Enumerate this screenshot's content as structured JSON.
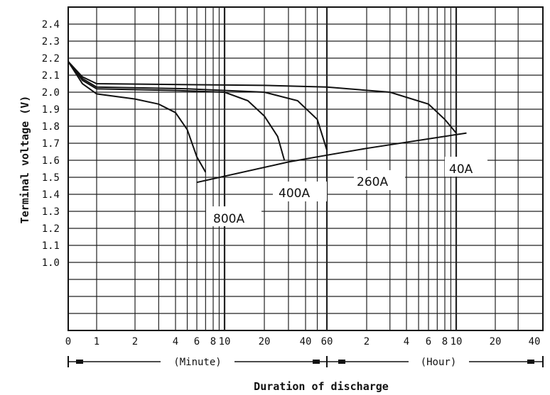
{
  "chart_data": {
    "type": "line",
    "title": "",
    "ylabel": "Terminal voltage (V)",
    "xlabel": "Duration of discharge",
    "x_segment_labels": [
      "(Minute)",
      "(Hour)"
    ],
    "y_ticks": [
      "2.4",
      "2.3",
      "2.2",
      "2.1",
      "2.0",
      "1.9",
      "1.8",
      "1.7",
      "1.6",
      "1.5",
      "1.4",
      "1.3",
      "1.2",
      "1.1",
      "1.0"
    ],
    "x_ticks": [
      "0",
      "1",
      "2",
      "4",
      "6",
      "8",
      "10",
      "20",
      "40",
      "60",
      "2",
      "4",
      "6",
      "8",
      "10",
      "20",
      "40"
    ],
    "ylim": [
      0.6,
      2.5
    ],
    "grid": true,
    "series": [
      {
        "name": "800A",
        "unit": "minute",
        "points": [
          [
            0,
            2.18
          ],
          [
            0.5,
            2.05
          ],
          [
            1,
            1.99
          ],
          [
            2,
            1.96
          ],
          [
            3,
            1.93
          ],
          [
            4,
            1.88
          ],
          [
            5,
            1.78
          ],
          [
            6,
            1.62
          ],
          [
            7,
            1.53
          ]
        ]
      },
      {
        "name": "400A",
        "unit": "minute",
        "points": [
          [
            0,
            2.18
          ],
          [
            0.5,
            2.07
          ],
          [
            1,
            2.02
          ],
          [
            4,
            2.01
          ],
          [
            10,
            2.0
          ],
          [
            15,
            1.95
          ],
          [
            20,
            1.86
          ],
          [
            25,
            1.74
          ],
          [
            28,
            1.6
          ]
        ]
      },
      {
        "name": "260A",
        "unit": "minute",
        "points": [
          [
            0,
            2.18
          ],
          [
            0.5,
            2.08
          ],
          [
            1,
            2.03
          ],
          [
            5,
            2.02
          ],
          [
            20,
            2.0
          ],
          [
            35,
            1.95
          ],
          [
            50,
            1.84
          ],
          [
            60,
            1.66
          ]
        ]
      },
      {
        "name": "40A",
        "unit": "minute",
        "points": [
          [
            0,
            2.18
          ],
          [
            0.5,
            2.09
          ],
          [
            1,
            2.05
          ],
          [
            20,
            2.04
          ],
          [
            60,
            2.03
          ],
          [
            180,
            2.0
          ],
          [
            360,
            1.93
          ],
          [
            480,
            1.84
          ],
          [
            600,
            1.76
          ]
        ]
      }
    ],
    "end_voltage_line": {
      "unit": "minute",
      "points": [
        [
          6,
          1.47
        ],
        [
          30,
          1.59
        ],
        [
          60,
          1.63
        ],
        [
          120,
          1.67
        ],
        [
          720,
          1.76
        ]
      ]
    }
  }
}
